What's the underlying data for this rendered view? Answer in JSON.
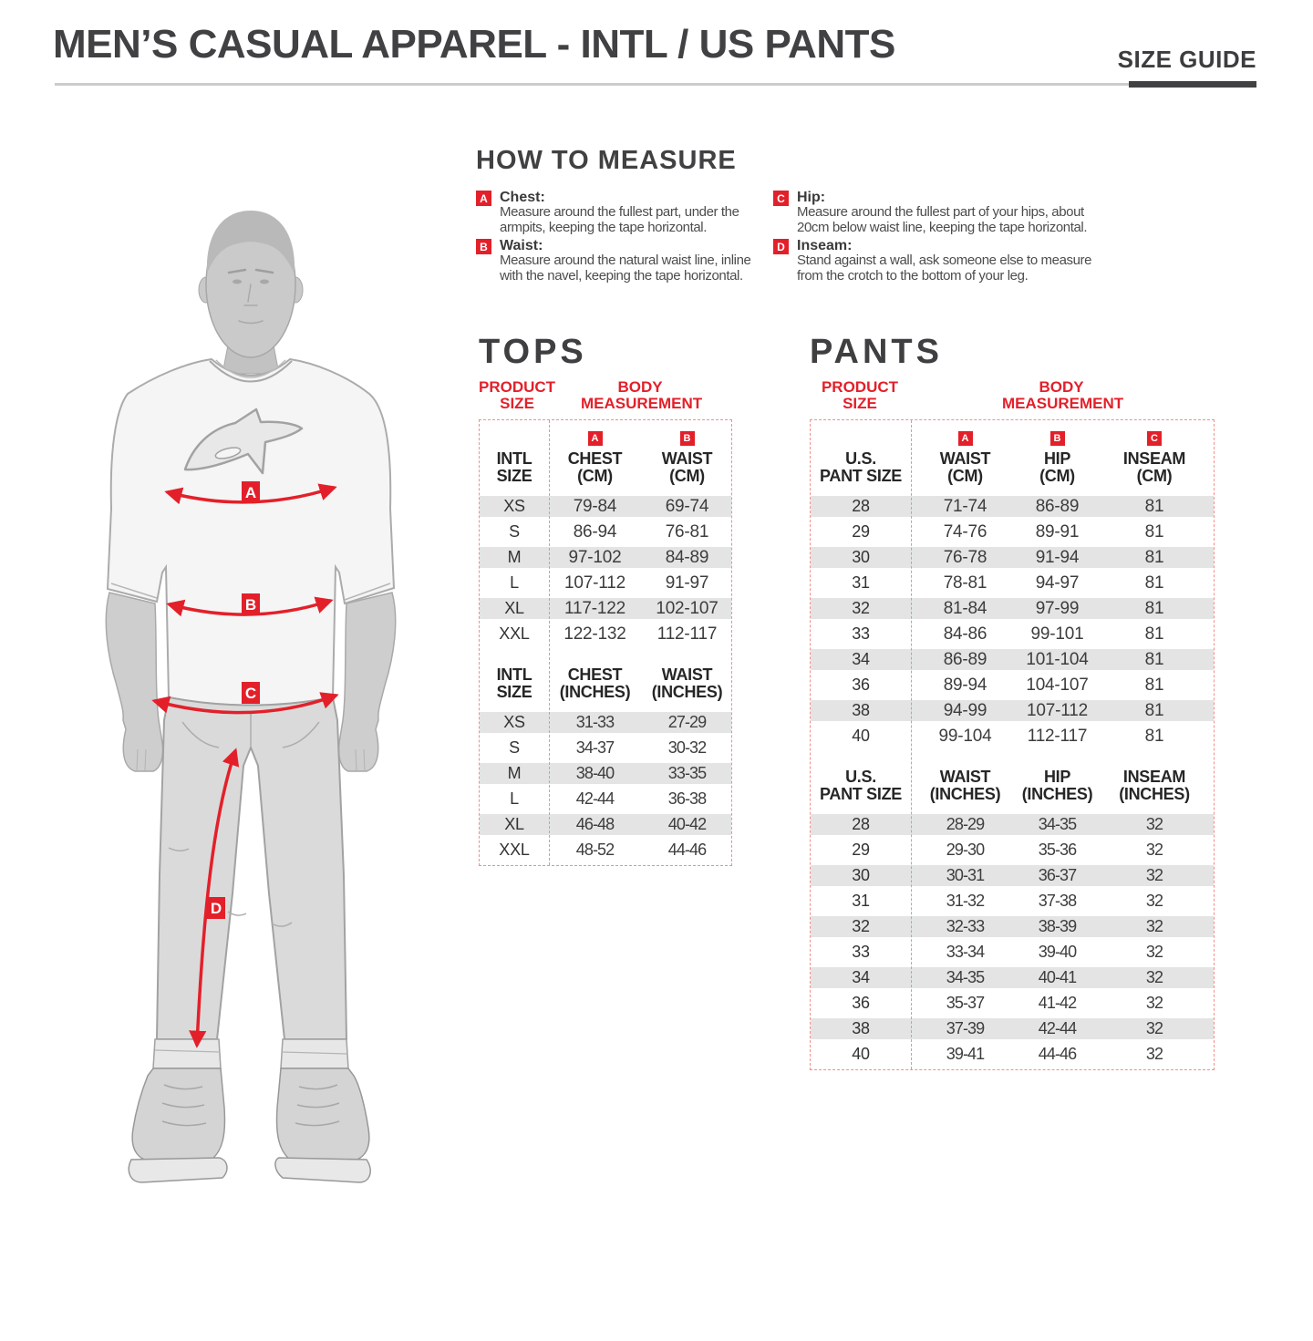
{
  "colors": {
    "accent_red": "#e3202a",
    "dark_heading": "#414042",
    "row_stripe": "#e4e4e4",
    "dashed_border": "#f0908a",
    "divider": "#cccccc"
  },
  "header": {
    "title": "MEN’S CASUAL APPAREL - INTL / US PANTS",
    "size_guide_label": "SIZE GUIDE"
  },
  "how_to_measure": {
    "title": "HOW TO MEASURE",
    "items": [
      {
        "letter": "A",
        "label": "Chest:",
        "text": "Measure around the fullest part, under the armpits, keeping the tape horizontal."
      },
      {
        "letter": "B",
        "label": "Waist:",
        "text": "Measure around the natural waist line, inline with the navel, keeping the tape horizontal."
      },
      {
        "letter": "C",
        "label": "Hip:",
        "text": "Measure around the fullest part of your hips, about 20cm below waist line, keeping the tape horizontal."
      },
      {
        "letter": "D",
        "label": "Inseam:",
        "text": "Stand against a wall, ask someone else to measure from the crotch to the bottom of your leg."
      }
    ]
  },
  "figure": {
    "labels": [
      "A",
      "B",
      "C",
      "D"
    ]
  },
  "tops": {
    "title": "TOPS",
    "product_size_label": "PRODUCT SIZE",
    "body_measurement_label": "BODY MEASUREMENT",
    "cm_headers": [
      {
        "badge": "",
        "lines": [
          "INTL",
          "SIZE"
        ]
      },
      {
        "badge": "A",
        "lines": [
          "CHEST",
          "(CM)"
        ]
      },
      {
        "badge": "B",
        "lines": [
          "WAIST",
          "(CM)"
        ]
      }
    ],
    "cm_rows": [
      [
        "XS",
        "79-84",
        "69-74"
      ],
      [
        "S",
        "86-94",
        "76-81"
      ],
      [
        "M",
        "97-102",
        "84-89"
      ],
      [
        "L",
        "107-112",
        "91-97"
      ],
      [
        "XL",
        "117-122",
        "102-107"
      ],
      [
        "XXL",
        "122-132",
        "112-117"
      ]
    ],
    "in_headers": [
      {
        "lines": [
          "INTL",
          "SIZE"
        ]
      },
      {
        "lines": [
          "CHEST",
          "(INCHES)"
        ]
      },
      {
        "lines": [
          "WAIST",
          "(INCHES)"
        ]
      }
    ],
    "in_rows": [
      [
        "XS",
        "31-33",
        "27-29"
      ],
      [
        "S",
        "34-37",
        "30-32"
      ],
      [
        "M",
        "38-40",
        "33-35"
      ],
      [
        "L",
        "42-44",
        "36-38"
      ],
      [
        "XL",
        "46-48",
        "40-42"
      ],
      [
        "XXL",
        "48-52",
        "44-46"
      ]
    ]
  },
  "pants": {
    "title": "PANTS",
    "product_size_label": "PRODUCT SIZE",
    "body_measurement_label": "BODY MEASUREMENT",
    "cm_headers": [
      {
        "badge": "",
        "lines": [
          "U.S.",
          "PANT SIZE"
        ]
      },
      {
        "badge": "A",
        "lines": [
          "WAIST",
          "(CM)"
        ]
      },
      {
        "badge": "B",
        "lines": [
          "HIP",
          "(CM)"
        ]
      },
      {
        "badge": "C",
        "lines": [
          "INSEAM",
          "(CM)"
        ]
      }
    ],
    "cm_rows": [
      [
        "28",
        "71-74",
        "86-89",
        "81"
      ],
      [
        "29",
        "74-76",
        "89-91",
        "81"
      ],
      [
        "30",
        "76-78",
        "91-94",
        "81"
      ],
      [
        "31",
        "78-81",
        "94-97",
        "81"
      ],
      [
        "32",
        "81-84",
        "97-99",
        "81"
      ],
      [
        "33",
        "84-86",
        "99-101",
        "81"
      ],
      [
        "34",
        "86-89",
        "101-104",
        "81"
      ],
      [
        "36",
        "89-94",
        "104-107",
        "81"
      ],
      [
        "38",
        "94-99",
        "107-112",
        "81"
      ],
      [
        "40",
        "99-104",
        "112-117",
        "81"
      ]
    ],
    "in_headers": [
      {
        "lines": [
          "U.S.",
          "PANT SIZE"
        ]
      },
      {
        "lines": [
          "WAIST",
          "(INCHES)"
        ]
      },
      {
        "lines": [
          "HIP",
          "(INCHES)"
        ]
      },
      {
        "lines": [
          "INSEAM",
          "(INCHES)"
        ]
      }
    ],
    "in_rows": [
      [
        "28",
        "28-29",
        "34-35",
        "32"
      ],
      [
        "29",
        "29-30",
        "35-36",
        "32"
      ],
      [
        "30",
        "30-31",
        "36-37",
        "32"
      ],
      [
        "31",
        "31-32",
        "37-38",
        "32"
      ],
      [
        "32",
        "32-33",
        "38-39",
        "32"
      ],
      [
        "33",
        "33-34",
        "39-40",
        "32"
      ],
      [
        "34",
        "34-35",
        "40-41",
        "32"
      ],
      [
        "36",
        "35-37",
        "41-42",
        "32"
      ],
      [
        "38",
        "37-39",
        "42-44",
        "32"
      ],
      [
        "40",
        "39-41",
        "44-46",
        "32"
      ]
    ]
  }
}
